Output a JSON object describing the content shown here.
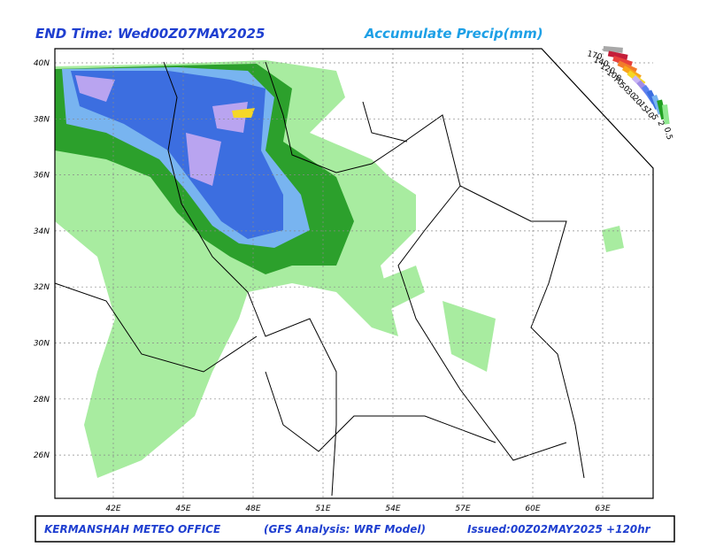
{
  "header": {
    "left": "END Time: Wed00Z07MAY2025",
    "right": "Accumulate Precip(mm)"
  },
  "lat_labels": [
    "40N",
    "38N",
    "36N",
    "34N",
    "32N",
    "30N",
    "28N",
    "26N"
  ],
  "lon_labels": [
    "42E",
    "45E",
    "48E",
    "51E",
    "54E",
    "57E",
    "60E",
    "63E"
  ],
  "legend": {
    "items": [
      {
        "label": "170",
        "color": "#a8a8a8"
      },
      {
        "label": "140",
        "color": "#c41e3a"
      },
      {
        "label": "120",
        "color": "#e8413c"
      },
      {
        "label": "100",
        "color": "#f27b2b"
      },
      {
        "label": "70",
        "color": "#f9a51a"
      },
      {
        "label": "50",
        "color": "#f5d727"
      },
      {
        "label": "30",
        "color": "#c8b4f5"
      },
      {
        "label": "20",
        "color": "#a08ce6"
      },
      {
        "label": "15",
        "color": "#5a82f0"
      },
      {
        "label": "10",
        "color": "#3c6ee0"
      },
      {
        "label": "5",
        "color": "#78b4f0"
      },
      {
        "label": "2",
        "color": "#22a022"
      },
      {
        "label": "0.5",
        "color": "#90e890"
      }
    ]
  },
  "footer": {
    "office": "KERMANSHAH METEO OFFICE",
    "model": "(GFS Analysis: WRF Model)",
    "issued": "Issued:00Z02MAY2025 +120hr"
  }
}
